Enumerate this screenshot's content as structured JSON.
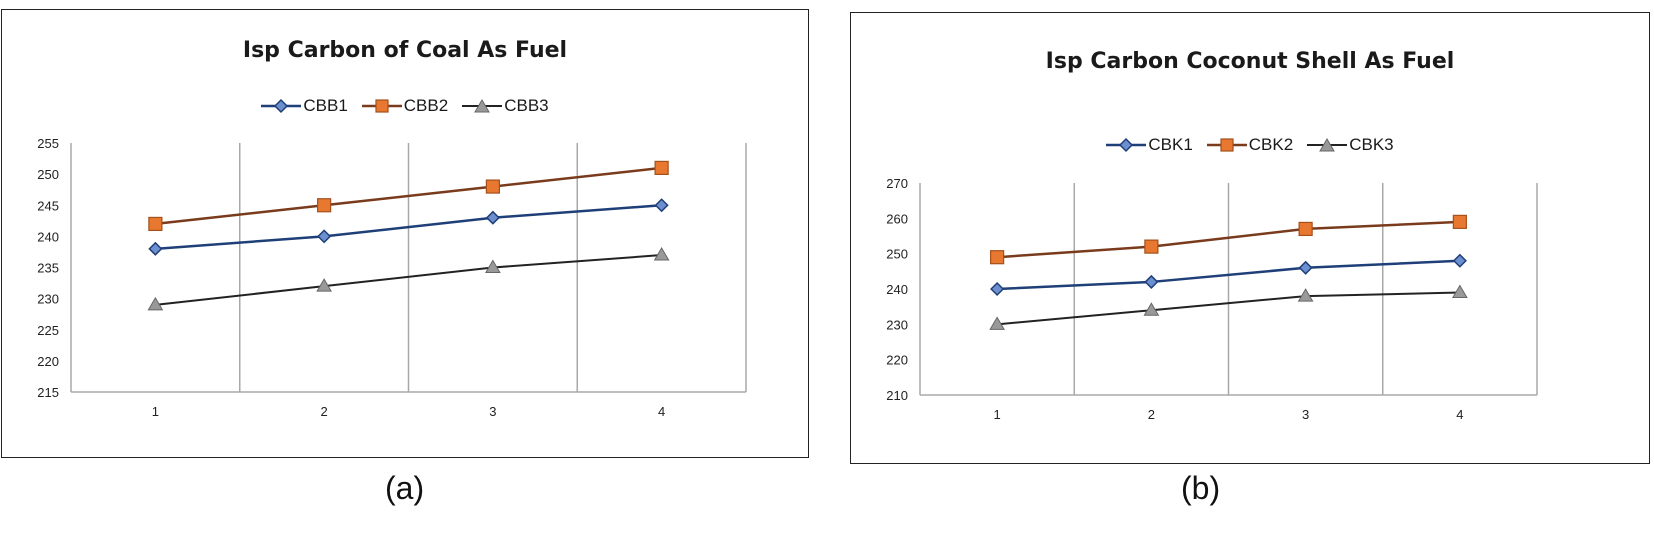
{
  "captions": {
    "a": "(a)",
    "b": "(b)"
  },
  "colors": {
    "series1": "#1f3f78",
    "series2": "#e8782f",
    "series2_line": "#7a3a1c",
    "series3": "#8a8a8a",
    "series3_line": "#222222",
    "grid": "#a8a8a8"
  },
  "chart_data": [
    {
      "type": "line",
      "title": "Isp Carbon of Coal As Fuel",
      "xlabel": "",
      "ylabel": "",
      "categories": [
        "1",
        "2",
        "3",
        "4"
      ],
      "ylim": [
        215,
        255
      ],
      "yticks": [
        215,
        220,
        225,
        230,
        235,
        240,
        245,
        250,
        255
      ],
      "grid": "vertical",
      "legend_position": "top",
      "series": [
        {
          "name": "CBB1",
          "values": [
            238,
            240,
            243,
            245
          ],
          "marker": "diamond"
        },
        {
          "name": "CBB2",
          "values": [
            242,
            245,
            248,
            251
          ],
          "marker": "square"
        },
        {
          "name": "CBB3",
          "values": [
            229,
            232,
            235,
            237
          ],
          "marker": "triangle"
        }
      ]
    },
    {
      "type": "line",
      "title": "Isp Carbon Coconut Shell As Fuel",
      "xlabel": "",
      "ylabel": "",
      "categories": [
        "1",
        "2",
        "3",
        "4"
      ],
      "ylim": [
        210,
        270
      ],
      "yticks": [
        210,
        220,
        230,
        240,
        250,
        260,
        270
      ],
      "grid": "vertical",
      "legend_position": "top",
      "series": [
        {
          "name": "CBK1",
          "values": [
            240,
            242,
            246,
            248
          ],
          "marker": "diamond"
        },
        {
          "name": "CBK2",
          "values": [
            249,
            252,
            257,
            259
          ],
          "marker": "square"
        },
        {
          "name": "CBK3",
          "values": [
            230,
            234,
            238,
            239
          ],
          "marker": "triangle"
        }
      ]
    }
  ]
}
